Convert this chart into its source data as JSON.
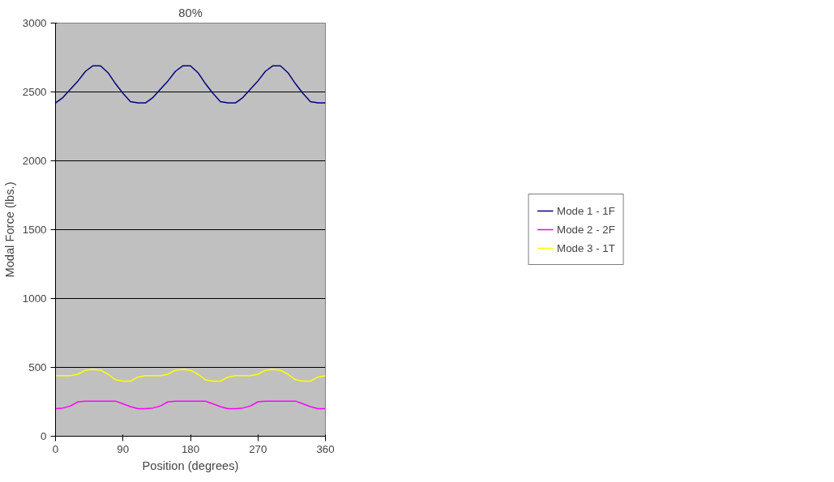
{
  "chart_data": {
    "type": "line",
    "title": "80%",
    "xlabel": "Position (degrees)",
    "ylabel": "Modal Force (lbs.)",
    "x": [
      0,
      10,
      20,
      30,
      40,
      50,
      60,
      70,
      80,
      90,
      100,
      110,
      120,
      130,
      140,
      150,
      160,
      170,
      180,
      190,
      200,
      210,
      220,
      230,
      240,
      250,
      260,
      270,
      280,
      290,
      300,
      310,
      320,
      330,
      340,
      350,
      360
    ],
    "series": [
      {
        "name": "Mode 1 - 1F",
        "color": "#000080",
        "values": [
          2420,
          2460,
          2520,
          2580,
          2650,
          2690,
          2690,
          2640,
          2560,
          2490,
          2430,
          2420,
          2420,
          2460,
          2520,
          2580,
          2650,
          2690,
          2690,
          2640,
          2560,
          2490,
          2430,
          2420,
          2420,
          2460,
          2520,
          2580,
          2650,
          2690,
          2690,
          2640,
          2560,
          2490,
          2430,
          2420,
          2420
        ]
      },
      {
        "name": "Mode 2 - 2F",
        "color": "#ff00ff",
        "values": [
          200,
          205,
          220,
          250,
          255,
          255,
          255,
          255,
          255,
          235,
          215,
          200,
          200,
          205,
          220,
          250,
          255,
          255,
          255,
          255,
          255,
          235,
          215,
          200,
          200,
          205,
          220,
          250,
          255,
          255,
          255,
          255,
          255,
          235,
          215,
          200,
          200
        ]
      },
      {
        "name": "Mode 3 - 1T",
        "color": "#ffff00",
        "values": [
          440,
          440,
          440,
          450,
          480,
          485,
          480,
          450,
          410,
          400,
          400,
          430,
          440,
          440,
          440,
          450,
          480,
          485,
          480,
          450,
          410,
          400,
          400,
          430,
          440,
          440,
          440,
          450,
          480,
          485,
          480,
          450,
          410,
          400,
          400,
          430,
          440
        ]
      }
    ],
    "xlim": [
      0,
      360
    ],
    "xticks": [
      0,
      90,
      180,
      270,
      360
    ],
    "ylim": [
      0,
      3000
    ],
    "yticks": [
      0,
      500,
      1000,
      1500,
      2000,
      2500,
      3000
    ],
    "grid": "y",
    "legend": "right",
    "marker": "none",
    "line_style": "solid"
  }
}
